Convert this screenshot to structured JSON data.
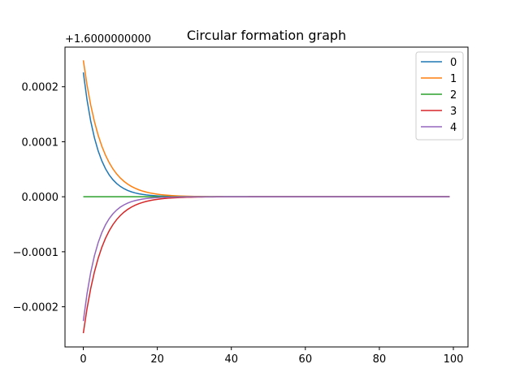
{
  "chart_data": {
    "type": "line",
    "title": "Circular formation graph",
    "offset_text": "+1.6000000000",
    "xlabel": "",
    "ylabel": "",
    "xlim": [
      -4.95,
      103.95
    ],
    "ylim": [
      -0.000273,
      0.000272
    ],
    "x_ticks": [
      0,
      20,
      40,
      60,
      80,
      100
    ],
    "x_tick_labels": [
      "0",
      "20",
      "40",
      "60",
      "80",
      "100"
    ],
    "y_ticks": [
      -0.0002,
      -0.0001,
      0.0,
      0.0001,
      0.0002
    ],
    "y_tick_labels": [
      "−0.0002",
      "−0.0001",
      "0.0000",
      "0.0001",
      "0.0002"
    ],
    "grid": false,
    "legend_position": "top-right",
    "x_range": [
      0,
      99
    ],
    "series": [
      {
        "name": "0",
        "color": "#1f77b4",
        "initial": 0.000226,
        "decay": 0.78
      },
      {
        "name": "1",
        "color": "#ff7f0e",
        "initial": 0.000248,
        "decay": 0.82
      },
      {
        "name": "2",
        "color": "#2ca02c",
        "initial": 0.0,
        "decay": 1.0
      },
      {
        "name": "3",
        "color": "#d62728",
        "initial": -0.000248,
        "decay": 0.82
      },
      {
        "name": "4",
        "color": "#9467bd",
        "initial": -0.000226,
        "decay": 0.78
      }
    ]
  }
}
